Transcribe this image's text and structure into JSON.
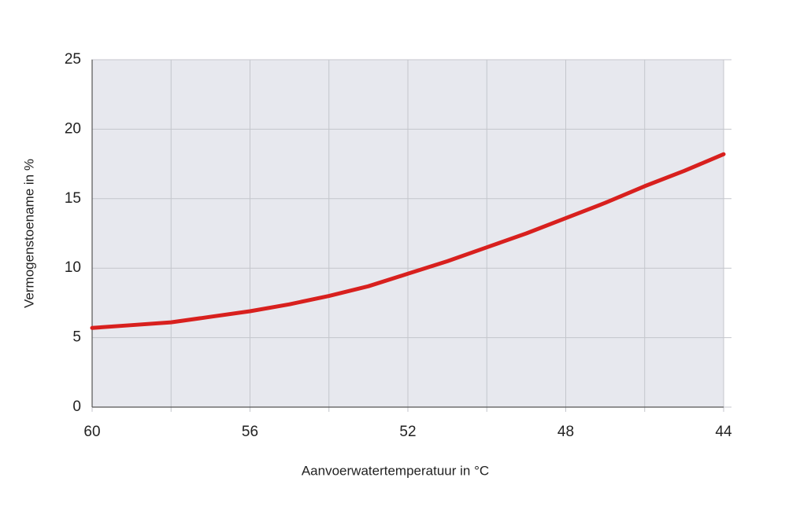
{
  "chart_data": {
    "type": "line",
    "x_label": "Aanvoerwatertemperatuur in °C",
    "y_label": "Vermogenstoename in %",
    "x": [
      60,
      59,
      58,
      57,
      56,
      55,
      54,
      53,
      52,
      51,
      50,
      49,
      48,
      47,
      46,
      45,
      44
    ],
    "series": [
      {
        "color": "#d8201e",
        "values": [
          5.7,
          5.9,
          6.1,
          6.5,
          6.9,
          7.4,
          8.0,
          8.7,
          9.6,
          10.5,
          11.5,
          12.5,
          13.6,
          14.7,
          15.9,
          17.0,
          18.2
        ]
      }
    ],
    "xlim": [
      60,
      44
    ],
    "xticks": [
      60,
      56,
      52,
      48,
      44
    ],
    "xgrid": [
      58,
      54,
      50,
      46
    ],
    "ylim": [
      0,
      25
    ],
    "yticks": [
      0,
      5,
      10,
      15,
      20,
      25
    ],
    "grid": true
  }
}
